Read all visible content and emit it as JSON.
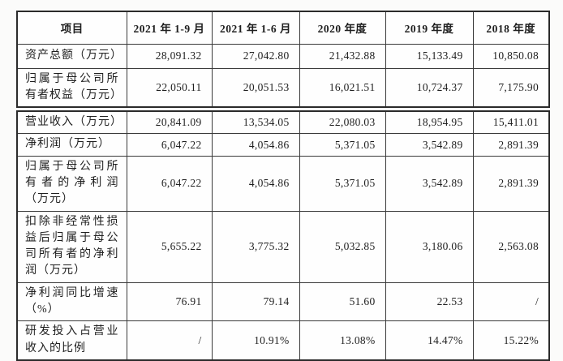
{
  "colors": {
    "page_background": "#fbfbfa",
    "table_background": "#fefefe",
    "border": "#3a3a3a",
    "text": "#1f1f1f"
  },
  "table": {
    "columns": [
      "项目",
      "2021 年 1-9 月",
      "2021 年 1-6 月",
      "2020 年度",
      "2019 年度",
      "2018 年度"
    ],
    "sections": [
      {
        "rows": [
          {
            "label": "资产总额（万元）",
            "values": [
              "28,091.32",
              "27,042.80",
              "21,432.88",
              "15,133.49",
              "10,850.08"
            ]
          },
          {
            "label": "归属于母公司所有者权益（万元）",
            "values": [
              "22,050.11",
              "20,051.53",
              "16,021.51",
              "10,724.37",
              "7,175.90"
            ]
          }
        ]
      },
      {
        "rows": [
          {
            "label": "营业收入（万元）",
            "values": [
              "20,841.09",
              "13,534.05",
              "22,080.03",
              "18,954.95",
              "15,411.01"
            ]
          },
          {
            "label": "净利润（万元）",
            "values": [
              "6,047.22",
              "4,054.86",
              "5,371.05",
              "3,542.89",
              "2,891.39"
            ]
          },
          {
            "label": "归属于母公司所有者的净利润（万元）",
            "values": [
              "6,047.22",
              "4,054.86",
              "5,371.05",
              "3,542.89",
              "2,891.39"
            ]
          },
          {
            "label": "扣除非经常性损益后归属于母公司所有者的净利润（万元）",
            "values": [
              "5,655.22",
              "3,775.32",
              "5,032.85",
              "3,180.06",
              "2,563.08"
            ]
          },
          {
            "label": "净利润同比增速（%）",
            "values": [
              "76.91",
              "79.14",
              "51.60",
              "22.53",
              "/"
            ]
          },
          {
            "label": "研发投入占营业收入的比例",
            "values": [
              "/",
              "10.91%",
              "13.08%",
              "14.47%",
              "15.22%"
            ]
          }
        ]
      }
    ]
  }
}
